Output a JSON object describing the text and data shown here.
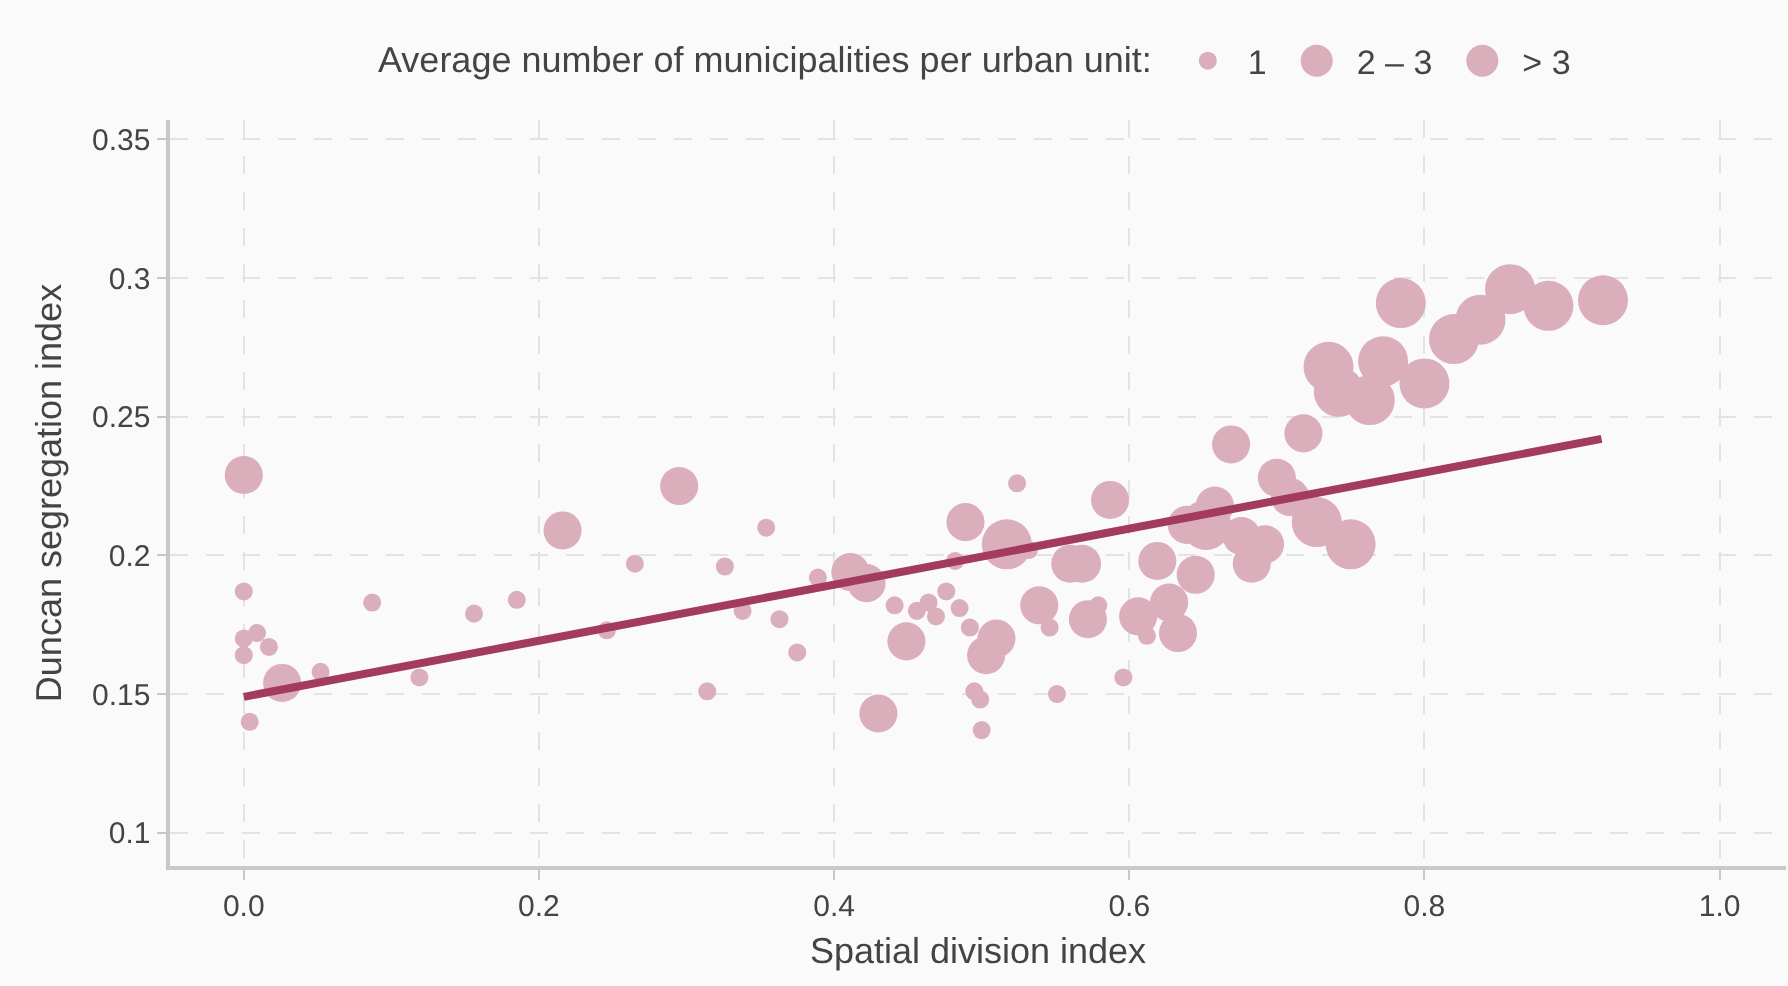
{
  "chart_data": {
    "type": "bubble",
    "xlabel": "Spatial division index",
    "ylabel": "Duncan segregation index",
    "legend_title": "Average number of municipalities per urban unit:",
    "legend": "top",
    "grid": true,
    "xlim": [
      -0.05,
      1.045
    ],
    "xticks": [
      {
        "value": 0,
        "label": "0.0"
      },
      {
        "value": 0.2,
        "label": "0.2"
      },
      {
        "value": 0.4,
        "label": "0.4"
      },
      {
        "value": 0.6,
        "label": "0.6"
      },
      {
        "value": 0.8,
        "label": "0.8"
      },
      {
        "value": 1,
        "label": "1.0"
      }
    ],
    "ylim": [
      0.088,
      0.357
    ],
    "yticks": [
      0.1,
      0.15,
      0.2,
      0.25,
      0.3,
      0.35
    ],
    "series": [
      {
        "name": "1",
        "color": "#dbaebb",
        "x": [
          0.0,
          0.0,
          0.009,
          0.0,
          0.017,
          0.052,
          0.004,
          0.087,
          0.119,
          0.156,
          0.185,
          0.246,
          0.265,
          0.354,
          0.326,
          0.338,
          0.363,
          0.375,
          0.314,
          0.389,
          0.441,
          0.456,
          0.464,
          0.469,
          0.476,
          0.485,
          0.492,
          0.495,
          0.499,
          0.5,
          0.524,
          0.482,
          0.532,
          0.546,
          0.579,
          0.551,
          0.596,
          0.612
        ],
        "values": [
          0.187,
          0.17,
          0.172,
          0.164,
          0.167,
          0.158,
          0.14,
          0.183,
          0.156,
          0.179,
          0.184,
          0.173,
          0.197,
          0.21,
          0.196,
          0.18,
          0.177,
          0.165,
          0.151,
          0.192,
          0.182,
          0.18,
          0.183,
          0.178,
          0.187,
          0.181,
          0.174,
          0.151,
          0.148,
          0.137,
          0.226,
          0.198,
          0.202,
          0.174,
          0.182,
          0.15,
          0.156,
          0.171
        ],
        "sizes": [
          0.13,
          0.13,
          0.13,
          0.13,
          0.13,
          0.13,
          0.13,
          0.13,
          0.13,
          0.13,
          0.13,
          0.13,
          0.13,
          0.13,
          0.13,
          0.13,
          0.13,
          0.13,
          0.13,
          0.13,
          0.13,
          0.13,
          0.13,
          0.13,
          0.13,
          0.13,
          0.13,
          0.13,
          0.13,
          0.13,
          0.13,
          0.13,
          0.13,
          0.13,
          0.13,
          0.13,
          0.13,
          0.13
        ]
      },
      {
        "name": "2 – 3",
        "color": "#dbaebb",
        "x": [
          0.0,
          0.026,
          0.216,
          0.295,
          0.411,
          0.422,
          0.449,
          0.43,
          0.51,
          0.503,
          0.489,
          0.587,
          0.56,
          0.568,
          0.539,
          0.572,
          0.606,
          0.627,
          0.633,
          0.619,
          0.645,
          0.669,
          0.718,
          0.639,
          0.658,
          0.676,
          0.692,
          0.683,
          0.7,
          0.709
        ],
        "values": [
          0.229,
          0.154,
          0.209,
          0.225,
          0.194,
          0.19,
          0.169,
          0.143,
          0.17,
          0.164,
          0.212,
          0.22,
          0.197,
          0.197,
          0.182,
          0.177,
          0.178,
          0.183,
          0.172,
          0.198,
          0.193,
          0.24,
          0.244,
          0.211,
          0.218,
          0.207,
          0.204,
          0.197,
          0.228,
          0.221
        ],
        "sizes": [
          0.58,
          0.58,
          0.58,
          0.58,
          0.58,
          0.58,
          0.58,
          0.58,
          0.58,
          0.58,
          0.58,
          0.58,
          0.58,
          0.58,
          0.58,
          0.58,
          0.58,
          0.58,
          0.58,
          0.58,
          0.58,
          0.58,
          0.58,
          0.58,
          0.58,
          0.58,
          0.58,
          0.58,
          0.58,
          0.58
        ]
      },
      {
        "name": "> 3",
        "color": "#dbaebb",
        "x": [
          0.517,
          0.652,
          0.727,
          0.75,
          0.735,
          0.742,
          0.763,
          0.772,
          0.784,
          0.8,
          0.82,
          0.838,
          0.858,
          0.884,
          0.921
        ],
        "values": [
          0.204,
          0.211,
          0.212,
          0.204,
          0.268,
          0.259,
          0.256,
          0.27,
          0.291,
          0.262,
          0.278,
          0.285,
          0.296,
          0.29,
          0.292
        ],
        "sizes": [
          1,
          1,
          1,
          1,
          1,
          1,
          1,
          1,
          1,
          1,
          1,
          1,
          1,
          1,
          1
        ]
      },
      {
        "type": "line",
        "color": "#a33a60",
        "x": [
          0.0,
          0.92
        ],
        "values": [
          0.149,
          0.242
        ]
      }
    ]
  }
}
